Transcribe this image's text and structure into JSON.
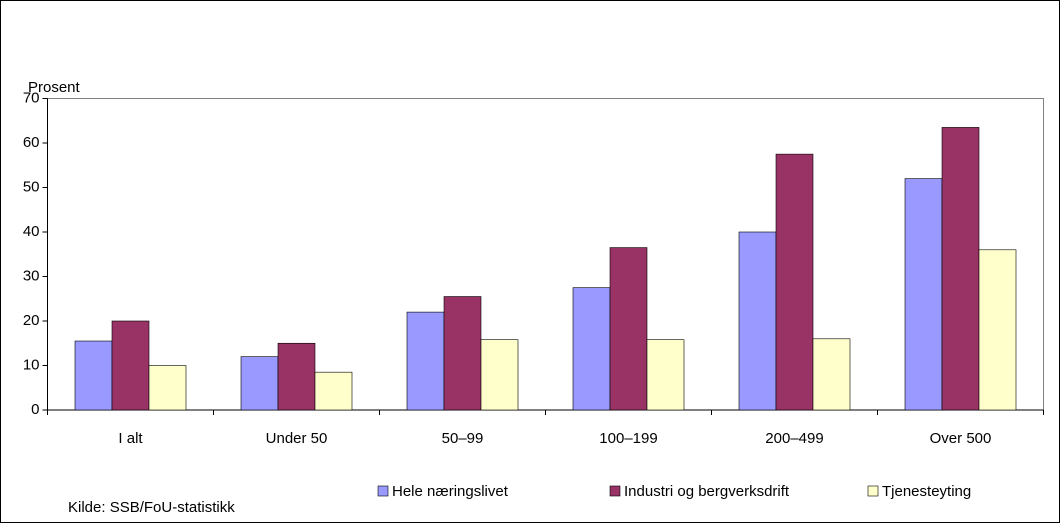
{
  "chart_data": {
    "type": "bar",
    "y_label": "Prosent",
    "source": "Kilde: SSB/FoU-statistikk",
    "categories": [
      "I alt",
      "Under 50",
      "50–99",
      "100–199",
      "200–499",
      "Over 500"
    ],
    "series": [
      {
        "name": "Hele næringslivet",
        "color": "#9999ff",
        "values": [
          15.5,
          12,
          22,
          27.5,
          40,
          52
        ]
      },
      {
        "name": "Industri og bergverksdrift",
        "color": "#993366",
        "values": [
          20,
          15,
          25.5,
          36.5,
          57.5,
          63.5
        ]
      },
      {
        "name": "Tjenesteyting",
        "color": "#ffffcc",
        "values": [
          10,
          8.5,
          15.8,
          15.8,
          16,
          36
        ]
      }
    ],
    "ylim": [
      0,
      70
    ],
    "yticks": [
      0,
      10,
      20,
      30,
      40,
      50,
      60,
      70
    ],
    "grid": false
  }
}
